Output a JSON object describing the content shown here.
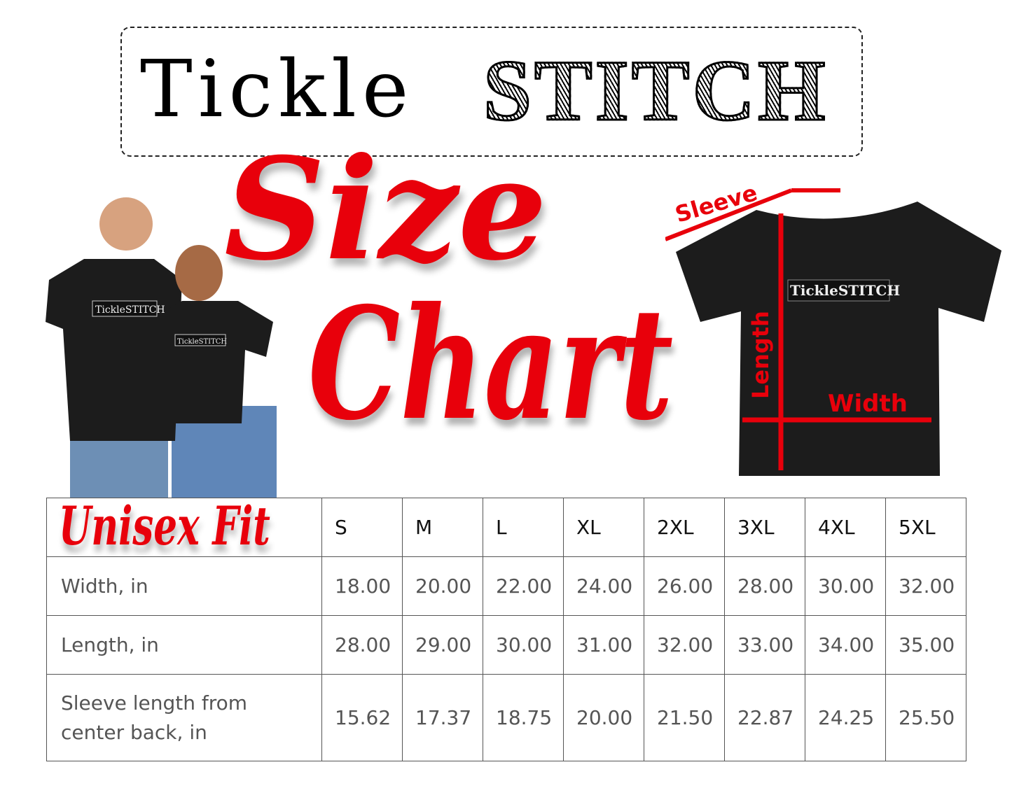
{
  "logo": {
    "part1": "Tickle",
    "part2": "STITCH"
  },
  "title": {
    "line1": "Size",
    "line2": "Chart"
  },
  "fit_label": "Unisex Fit",
  "shirt_print": "TickleSTITCH",
  "diagram": {
    "sleeve": "Sleeve",
    "length": "Length",
    "width": "Width"
  },
  "colors": {
    "accent": "#e8000b",
    "shirt": "#1c1c1c"
  },
  "table": {
    "headers": [
      "S",
      "M",
      "L",
      "XL",
      "2XL",
      "3XL",
      "4XL",
      "5XL"
    ],
    "rows": [
      {
        "label": "Width, in",
        "values": [
          "18.00",
          "20.00",
          "22.00",
          "24.00",
          "26.00",
          "28.00",
          "30.00",
          "32.00"
        ]
      },
      {
        "label": "Length, in",
        "values": [
          "28.00",
          "29.00",
          "30.00",
          "31.00",
          "32.00",
          "33.00",
          "34.00",
          "35.00"
        ]
      },
      {
        "label": "Sleeve length from center back, in",
        "values": [
          "15.62",
          "17.37",
          "18.75",
          "20.00",
          "21.50",
          "22.87",
          "24.25",
          "25.50"
        ]
      }
    ]
  }
}
